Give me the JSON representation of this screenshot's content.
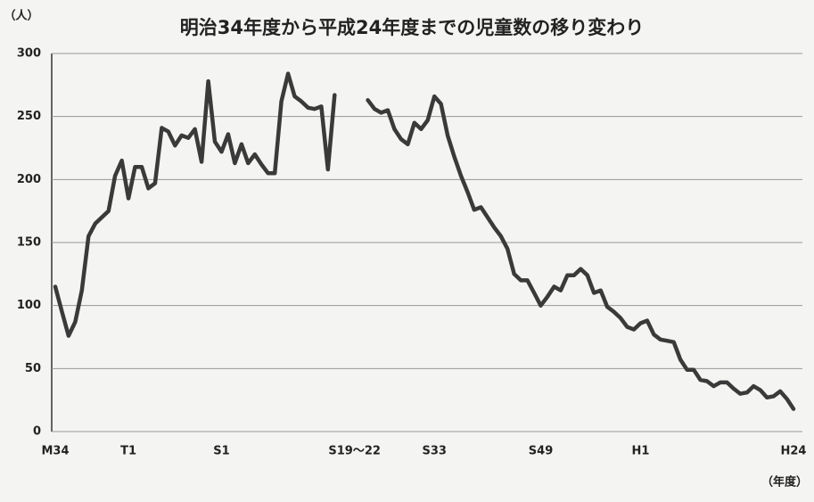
{
  "chart_data": {
    "type": "line",
    "title": "明治34年度から平成24年度までの児童数の移り変わり",
    "y_label": "（人）",
    "x_label": "（年度）",
    "categories": [
      "M34",
      null,
      null,
      null,
      null,
      null,
      null,
      null,
      null,
      null,
      null,
      "T1",
      null,
      null,
      null,
      null,
      null,
      null,
      null,
      null,
      null,
      null,
      null,
      null,
      null,
      "S1",
      null,
      null,
      null,
      null,
      null,
      null,
      null,
      null,
      null,
      null,
      null,
      null,
      null,
      null,
      null,
      null,
      null,
      null,
      null,
      "S19〜22",
      null,
      null,
      null,
      null,
      null,
      null,
      null,
      null,
      null,
      null,
      null,
      "S33",
      null,
      null,
      null,
      null,
      null,
      null,
      null,
      null,
      null,
      null,
      null,
      null,
      null,
      null,
      null,
      "S49",
      null,
      null,
      null,
      null,
      null,
      null,
      null,
      null,
      null,
      null,
      null,
      null,
      null,
      null,
      "H1",
      null,
      null,
      null,
      null,
      null,
      null,
      null,
      null,
      null,
      null,
      null,
      null,
      null,
      null,
      null,
      null,
      null,
      null,
      null,
      null,
      null,
      null,
      "H24"
    ],
    "values": [
      115,
      95,
      76,
      87,
      112,
      155,
      165,
      170,
      175,
      203,
      215,
      185,
      210,
      210,
      193,
      197,
      241,
      238,
      227,
      235,
      233,
      240,
      214,
      278,
      230,
      222,
      236,
      213,
      228,
      213,
      220,
      212,
      205,
      205,
      262,
      284,
      266,
      262,
      257,
      256,
      258,
      208,
      267,
      null,
      null,
      null,
      null,
      263,
      256,
      253,
      255,
      240,
      232,
      228,
      245,
      240,
      247,
      266,
      260,
      235,
      218,
      203,
      190,
      176,
      178,
      170,
      162,
      155,
      145,
      125,
      120,
      120,
      110,
      100,
      107,
      115,
      112,
      124,
      124,
      129,
      124,
      110,
      112,
      99,
      95,
      90,
      83,
      81,
      86,
      88,
      77,
      73,
      72,
      71,
      57,
      49,
      49,
      41,
      40,
      36,
      39,
      39,
      34,
      30,
      31,
      36,
      33,
      27,
      28,
      32,
      26,
      18
    ],
    "color": "#3a3a3a",
    "ylim": [
      0,
      300
    ],
    "yticks": [
      0,
      50,
      100,
      150,
      200,
      250,
      300
    ],
    "grid": true
  }
}
